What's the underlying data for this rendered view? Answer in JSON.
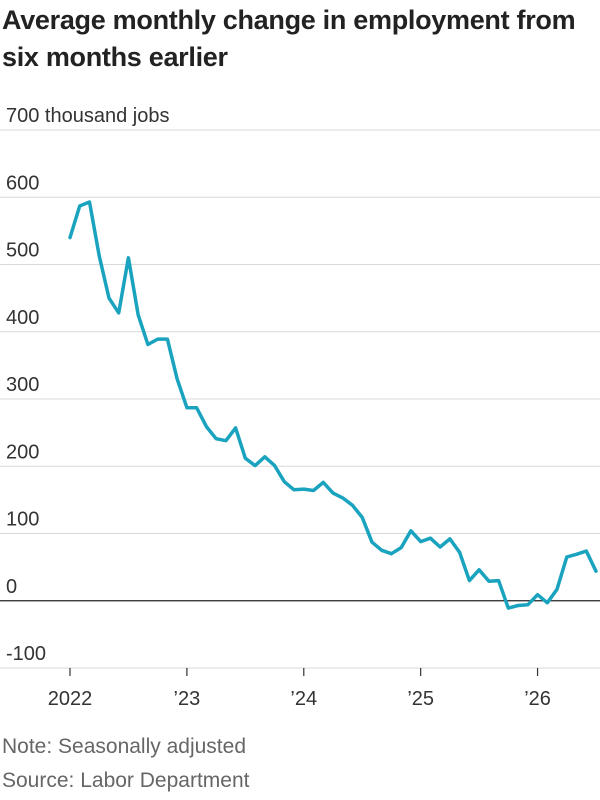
{
  "title": "Average monthly change in employment from six months earlier",
  "note": "Note: Seasonally adjusted",
  "source": "Source: Labor Department",
  "colors": {
    "line": "#1aa3bf",
    "grid": "#d9d9d9",
    "zero": "#222222"
  },
  "chart_data": {
    "type": "line",
    "title": "Average monthly change in employment from six months earlier",
    "ylabel": "thousand jobs",
    "ylim": [
      -100,
      700
    ],
    "yticks": [
      {
        "value": 700,
        "label": "700 thousand jobs"
      },
      {
        "value": 600,
        "label": "600"
      },
      {
        "value": 500,
        "label": "500"
      },
      {
        "value": 400,
        "label": "400"
      },
      {
        "value": 300,
        "label": "300"
      },
      {
        "value": 200,
        "label": "200"
      },
      {
        "value": 100,
        "label": "100"
      },
      {
        "value": 0,
        "label": "0"
      },
      {
        "value": -100,
        "label": "-100"
      }
    ],
    "xlim": [
      "2022-01",
      "2026-07"
    ],
    "xticks": [
      {
        "value": "2022-01",
        "label": "2022"
      },
      {
        "value": "2023-01",
        "label": "’23"
      },
      {
        "value": "2024-01",
        "label": "’24"
      },
      {
        "value": "2025-01",
        "label": "’25"
      },
      {
        "value": "2026-01",
        "label": "’26"
      }
    ],
    "grid": true,
    "series": [
      {
        "x": [
          "2022-01",
          "2022-02",
          "2022-03",
          "2022-04",
          "2022-05",
          "2022-06",
          "2022-07",
          "2022-08",
          "2022-09",
          "2022-10",
          "2022-11",
          "2022-12",
          "2023-01",
          "2023-02",
          "2023-03",
          "2023-04",
          "2023-05",
          "2023-06",
          "2023-07",
          "2023-08",
          "2023-09",
          "2023-10",
          "2023-11",
          "2023-12",
          "2024-01",
          "2024-02",
          "2024-03",
          "2024-04",
          "2024-05",
          "2024-06",
          "2024-07",
          "2024-08",
          "2024-09",
          "2024-10",
          "2024-11",
          "2024-12",
          "2025-01",
          "2025-02",
          "2025-03",
          "2025-04",
          "2025-05",
          "2025-06",
          "2025-07",
          "2025-08",
          "2025-09",
          "2025-10",
          "2025-11",
          "2025-12",
          "2026-01",
          "2026-02",
          "2026-03",
          "2026-04",
          "2026-05",
          "2026-06",
          "2026-07"
        ],
        "y": [
          540,
          587,
          593,
          513,
          450,
          428,
          510,
          425,
          381,
          389,
          389,
          330,
          287,
          287,
          259,
          241,
          238,
          257,
          212,
          201,
          214,
          201,
          177,
          165,
          166,
          164,
          176,
          160,
          153,
          142,
          124,
          87,
          75,
          70,
          79,
          104,
          88,
          93,
          80,
          92,
          72,
          30,
          46,
          29,
          30,
          -11,
          -7,
          -6,
          9,
          -3,
          17,
          65,
          69,
          74,
          44
        ]
      }
    ]
  }
}
